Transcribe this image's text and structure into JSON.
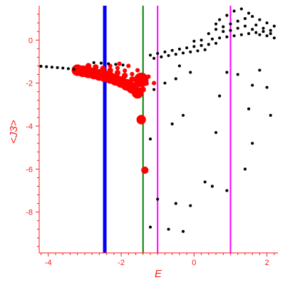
{
  "chart_data": {
    "type": "scatter",
    "xlabel": "E",
    "ylabel": "<J3>",
    "xlim": [
      -4.25,
      2.3
    ],
    "ylim": [
      -9.9,
      1.6
    ],
    "x_ticks": [
      {
        "value": -4,
        "label": "-4"
      },
      {
        "value": -2,
        "label": "-2"
      },
      {
        "value": 0,
        "label": "0"
      },
      {
        "value": 2,
        "label": "2"
      }
    ],
    "y_ticks": [
      {
        "value": 0,
        "label": "0"
      },
      {
        "value": -2,
        "label": "-2"
      },
      {
        "value": -4,
        "label": "-4"
      },
      {
        "value": -6,
        "label": "-6"
      },
      {
        "value": -8,
        "label": "-8"
      }
    ],
    "axis_color": "#ff1a1a",
    "vertical_lines": [
      {
        "x": -2.45,
        "color": "#0000ff"
      },
      {
        "x": -1.4,
        "color": "#008000"
      },
      {
        "x": -1.0,
        "color": "#ff00ff"
      },
      {
        "x": 1.0,
        "color": "#ff00ff"
      }
    ],
    "series": [
      {
        "color": "#ff0000",
        "points": [
          [
            -3.2,
            -1.4,
            0.16
          ],
          [
            -3.05,
            -1.45,
            0.16
          ],
          [
            -2.9,
            -1.5,
            0.16
          ],
          [
            -2.75,
            -1.55,
            0.16
          ],
          [
            -2.6,
            -1.62,
            0.16
          ],
          [
            -2.45,
            -1.68,
            0.16
          ],
          [
            -2.3,
            -1.76,
            0.16
          ],
          [
            -2.15,
            -1.85,
            0.16
          ],
          [
            -2.0,
            -1.95,
            0.16
          ],
          [
            -1.85,
            -2.08,
            0.16
          ],
          [
            -1.7,
            -2.22,
            0.16
          ],
          [
            -1.55,
            -2.45,
            0.16
          ],
          [
            -2.9,
            -1.2,
            0.08
          ],
          [
            -2.7,
            -1.26,
            0.08
          ],
          [
            -2.5,
            -1.33,
            0.08
          ],
          [
            -2.3,
            -1.41,
            0.08
          ],
          [
            -2.1,
            -1.52,
            0.08
          ],
          [
            -1.9,
            -1.65,
            0.08
          ],
          [
            -1.7,
            -1.82,
            0.08
          ],
          [
            -1.5,
            -2.05,
            0.08
          ],
          [
            -1.4,
            -2.3,
            0.08
          ],
          [
            -2.3,
            -1.2,
            0.06
          ],
          [
            -2.1,
            -1.3,
            0.06
          ],
          [
            -1.9,
            -1.42,
            0.06
          ],
          [
            -1.7,
            -1.58,
            0.06
          ],
          [
            -1.5,
            -1.78,
            0.06
          ],
          [
            -1.3,
            -2.02,
            0.06
          ],
          [
            -1.45,
            -1.85,
            0.2
          ],
          [
            -1.45,
            -3.7,
            0.13
          ],
          [
            -1.35,
            -6.05,
            0.1
          ],
          [
            -2.05,
            -1.1,
            0.06
          ],
          [
            -1.8,
            -1.2,
            0.06
          ],
          [
            -1.55,
            -1.4,
            0.06
          ],
          [
            -1.25,
            -1.7,
            0.06
          ],
          [
            -1.1,
            -2.0,
            0.06
          ]
        ]
      },
      {
        "color": "#000000",
        "points": [
          [
            -4.2,
            -1.22,
            0.04
          ],
          [
            -4.05,
            -1.24,
            0.04
          ],
          [
            -3.9,
            -1.26,
            0.04
          ],
          [
            -3.75,
            -1.28,
            0.04
          ],
          [
            -3.6,
            -1.3,
            0.04
          ],
          [
            -3.45,
            -1.33,
            0.04
          ],
          [
            -3.3,
            -1.36,
            0.04
          ],
          [
            -2.75,
            -1.05,
            0.04
          ],
          [
            -2.55,
            -1.07,
            0.04
          ],
          [
            -2.35,
            -1.1,
            0.04
          ],
          [
            -2.15,
            -1.13,
            0.04
          ],
          [
            -1.95,
            -1.16,
            0.04
          ],
          [
            -1.2,
            -0.7,
            0.04
          ],
          [
            -1.0,
            -0.62,
            0.04
          ],
          [
            -0.8,
            -0.55,
            0.04
          ],
          [
            -0.6,
            -0.48,
            0.04
          ],
          [
            -0.4,
            -0.42,
            0.04
          ],
          [
            -0.2,
            -0.36,
            0.04
          ],
          [
            0.0,
            -0.3,
            0.04
          ],
          [
            0.2,
            -0.25,
            0.04
          ],
          [
            0.4,
            -0.2,
            0.04
          ],
          [
            0.6,
            -0.15,
            0.04
          ],
          [
            -1.1,
            -0.85,
            0.04
          ],
          [
            -0.9,
            -0.78,
            0.04
          ],
          [
            -0.7,
            -0.72,
            0.04
          ],
          [
            -0.5,
            -0.66,
            0.04
          ],
          [
            -0.3,
            -0.6,
            0.04
          ],
          [
            -0.1,
            -0.55,
            0.04
          ],
          [
            0.1,
            -0.5,
            0.04
          ],
          [
            0.3,
            -0.45,
            0.04
          ],
          [
            0.5,
            0.05,
            0.04
          ],
          [
            0.7,
            0.1,
            0.04
          ],
          [
            0.9,
            0.15,
            0.04
          ],
          [
            1.1,
            0.2,
            0.04
          ],
          [
            1.3,
            0.25,
            0.04
          ],
          [
            1.5,
            0.3,
            0.04
          ],
          [
            1.7,
            0.35,
            0.04
          ],
          [
            1.9,
            0.4,
            0.04
          ],
          [
            2.1,
            0.45,
            0.04
          ],
          [
            0.6,
            0.5,
            0.04
          ],
          [
            0.8,
            0.62,
            0.04
          ],
          [
            1.0,
            0.75,
            0.04
          ],
          [
            1.2,
            0.88,
            0.04
          ],
          [
            1.4,
            1.0,
            0.04
          ],
          [
            1.6,
            1.1,
            0.04
          ],
          [
            1.8,
            0.95,
            0.04
          ],
          [
            2.0,
            0.8,
            0.04
          ],
          [
            2.2,
            0.65,
            0.04
          ],
          [
            0.7,
            0.95,
            0.04
          ],
          [
            0.9,
            1.15,
            0.04
          ],
          [
            1.1,
            1.35,
            0.04
          ],
          [
            1.3,
            1.45,
            0.04
          ],
          [
            1.5,
            1.25,
            0.04
          ],
          [
            1.7,
            0.7,
            0.04
          ],
          [
            1.9,
            0.55,
            0.04
          ],
          [
            2.1,
            0.3,
            0.04
          ],
          [
            2.2,
            0.1,
            0.04
          ],
          [
            0.0,
            -0.05,
            0.04
          ],
          [
            0.2,
            0.0,
            0.04
          ],
          [
            0.4,
            0.3,
            0.04
          ],
          [
            0.6,
            0.75,
            0.04
          ],
          [
            0.8,
            0.4,
            0.04
          ],
          [
            1.0,
            0.45,
            0.04
          ],
          [
            1.2,
            0.55,
            0.04
          ],
          [
            1.4,
            0.65,
            0.04
          ],
          [
            1.6,
            0.5,
            0.04
          ],
          [
            1.8,
            0.25,
            0.04
          ],
          [
            2.0,
            0.2,
            0.04
          ],
          [
            -0.5,
            -1.8,
            0.04
          ],
          [
            -0.8,
            -2.0,
            0.04
          ],
          [
            -1.1,
            -2.3,
            0.04
          ],
          [
            0.9,
            -1.5,
            0.04
          ],
          [
            1.2,
            -1.6,
            0.04
          ],
          [
            1.6,
            -2.1,
            0.04
          ],
          [
            2.0,
            -2.2,
            0.04
          ],
          [
            0.7,
            -2.6,
            0.04
          ],
          [
            1.5,
            -3.2,
            0.04
          ],
          [
            2.1,
            -3.5,
            0.04
          ],
          [
            -0.3,
            -3.5,
            0.04
          ],
          [
            -0.6,
            -3.9,
            0.04
          ],
          [
            0.6,
            -4.3,
            0.04
          ],
          [
            1.6,
            -4.8,
            0.04
          ],
          [
            -1.2,
            -4.6,
            0.04
          ],
          [
            1.4,
            -6.0,
            0.04
          ],
          [
            0.3,
            -6.6,
            0.04
          ],
          [
            0.5,
            -6.8,
            0.04
          ],
          [
            0.9,
            -7.0,
            0.04
          ],
          [
            -1.0,
            -7.4,
            0.04
          ],
          [
            -0.5,
            -7.6,
            0.04
          ],
          [
            -0.1,
            -7.7,
            0.04
          ],
          [
            -1.2,
            -8.7,
            0.04
          ],
          [
            -0.7,
            -8.8,
            0.04
          ],
          [
            -0.3,
            -8.9,
            0.04
          ],
          [
            -0.1,
            -1.5,
            0.04
          ],
          [
            -0.4,
            -1.2,
            0.04
          ],
          [
            1.8,
            -1.4,
            0.04
          ]
        ]
      }
    ]
  }
}
